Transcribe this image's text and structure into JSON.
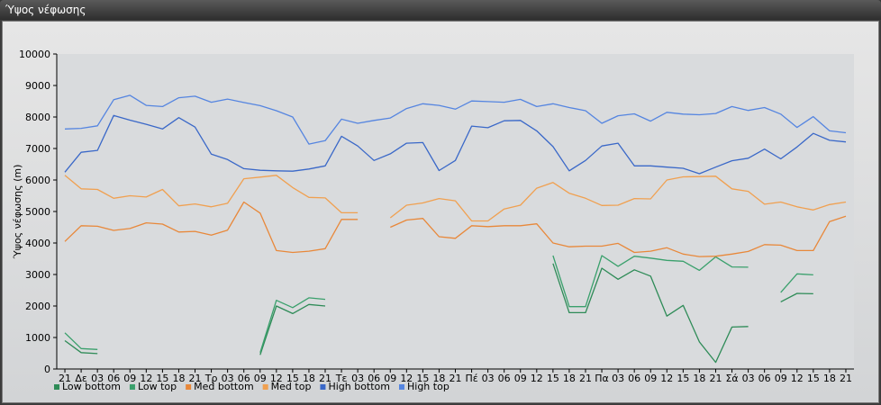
{
  "window": {
    "title": "Ύψος νέφωσης"
  },
  "chart_data": {
    "type": "line",
    "title": "",
    "ylabel": "Ύψος νέφωσης (m)",
    "xlabel": "",
    "ylim": [
      0,
      10000
    ],
    "yticks": [
      0,
      1000,
      2000,
      3000,
      4000,
      5000,
      6000,
      7000,
      8000,
      9000,
      10000
    ],
    "grid": false,
    "legend_position": "bottom-left",
    "categories": [
      "21",
      "Δε",
      "03",
      "06",
      "09",
      "12",
      "15",
      "18",
      "21",
      "Τρ",
      "03",
      "06",
      "09",
      "12",
      "15",
      "18",
      "21",
      "Τε",
      "03",
      "06",
      "09",
      "12",
      "15",
      "18",
      "21",
      "Πέ",
      "03",
      "06",
      "09",
      "12",
      "15",
      "18",
      "21",
      "Πα",
      "03",
      "06",
      "09",
      "12",
      "15",
      "18",
      "21",
      "Σά",
      "03",
      "06",
      "09",
      "12",
      "15",
      "18",
      "21"
    ],
    "series": [
      {
        "name": "Low bottom",
        "color": "#2e8b57",
        "values": [
          900,
          520,
          490,
          null,
          null,
          null,
          null,
          null,
          null,
          null,
          null,
          null,
          450,
          2000,
          1760,
          2050,
          2000,
          null,
          null,
          null,
          null,
          null,
          null,
          null,
          null,
          null,
          null,
          null,
          null,
          null,
          3350,
          1790,
          1790,
          3200,
          2850,
          3150,
          2950,
          1680,
          2020,
          860,
          210,
          1330,
          1350,
          null,
          2130,
          2400,
          2390,
          null,
          null
        ]
      },
      {
        "name": "Low top",
        "color": "#3aa06c",
        "values": [
          1150,
          650,
          620,
          null,
          null,
          null,
          null,
          null,
          null,
          null,
          null,
          null,
          520,
          2180,
          1950,
          2260,
          2210,
          null,
          null,
          null,
          null,
          null,
          null,
          null,
          null,
          null,
          null,
          null,
          null,
          null,
          3600,
          1980,
          1980,
          3600,
          3260,
          3580,
          3520,
          3450,
          3420,
          3130,
          3560,
          3240,
          3230,
          null,
          2430,
          3020,
          2990,
          null,
          null
        ]
      },
      {
        "name": "Med bottom",
        "color": "#e8883a",
        "values": [
          4050,
          4550,
          4530,
          4400,
          4460,
          4640,
          4600,
          4350,
          4370,
          4250,
          4410,
          5300,
          4950,
          3760,
          3700,
          3740,
          3820,
          4750,
          4750,
          null,
          4500,
          4730,
          4780,
          4200,
          4150,
          4550,
          4520,
          4550,
          4550,
          4610,
          4000,
          3880,
          3900,
          3900,
          3990,
          3700,
          3740,
          3850,
          3650,
          3570,
          3580,
          3650,
          3730,
          3950,
          3930,
          3760,
          3760,
          4680,
          4850
        ]
      },
      {
        "name": "Med top",
        "color": "#f0a050",
        "values": [
          6150,
          5720,
          5700,
          5420,
          5500,
          5460,
          5700,
          5180,
          5240,
          5150,
          5260,
          6040,
          6090,
          6150,
          5760,
          5450,
          5430,
          4960,
          4960,
          null,
          4800,
          5200,
          5270,
          5410,
          5340,
          4700,
          4700,
          5080,
          5200,
          5740,
          5920,
          5580,
          5420,
          5190,
          5200,
          5410,
          5400,
          6000,
          6100,
          6110,
          6120,
          5720,
          5640,
          5230,
          5300,
          5150,
          5050,
          5220,
          5300
        ]
      },
      {
        "name": "High bottom",
        "color": "#3a68c8",
        "values": [
          6250,
          6880,
          6940,
          8050,
          7900,
          7770,
          7620,
          7980,
          7680,
          6820,
          6650,
          6360,
          6310,
          6290,
          6280,
          6350,
          6450,
          7390,
          7080,
          6620,
          6830,
          7170,
          7190,
          6300,
          6620,
          7710,
          7660,
          7880,
          7890,
          7560,
          7060,
          6290,
          6620,
          7080,
          7170,
          6450,
          6450,
          6410,
          6370,
          6200,
          6410,
          6610,
          6690,
          6980,
          6670,
          7050,
          7480,
          7260,
          7210
        ]
      },
      {
        "name": "High top",
        "color": "#5585e0",
        "values": [
          7620,
          7640,
          7720,
          8550,
          8690,
          8370,
          8330,
          8610,
          8660,
          8470,
          8570,
          8460,
          8360,
          8200,
          8000,
          7140,
          7250,
          7930,
          7800,
          7890,
          7970,
          8270,
          8420,
          8370,
          8250,
          8510,
          8490,
          8470,
          8560,
          8330,
          8420,
          8300,
          8200,
          7800,
          8040,
          8100,
          7870,
          8150,
          8090,
          8070,
          8110,
          8330,
          8210,
          8300,
          8090,
          7670,
          8010,
          7560,
          7500
        ]
      }
    ]
  }
}
